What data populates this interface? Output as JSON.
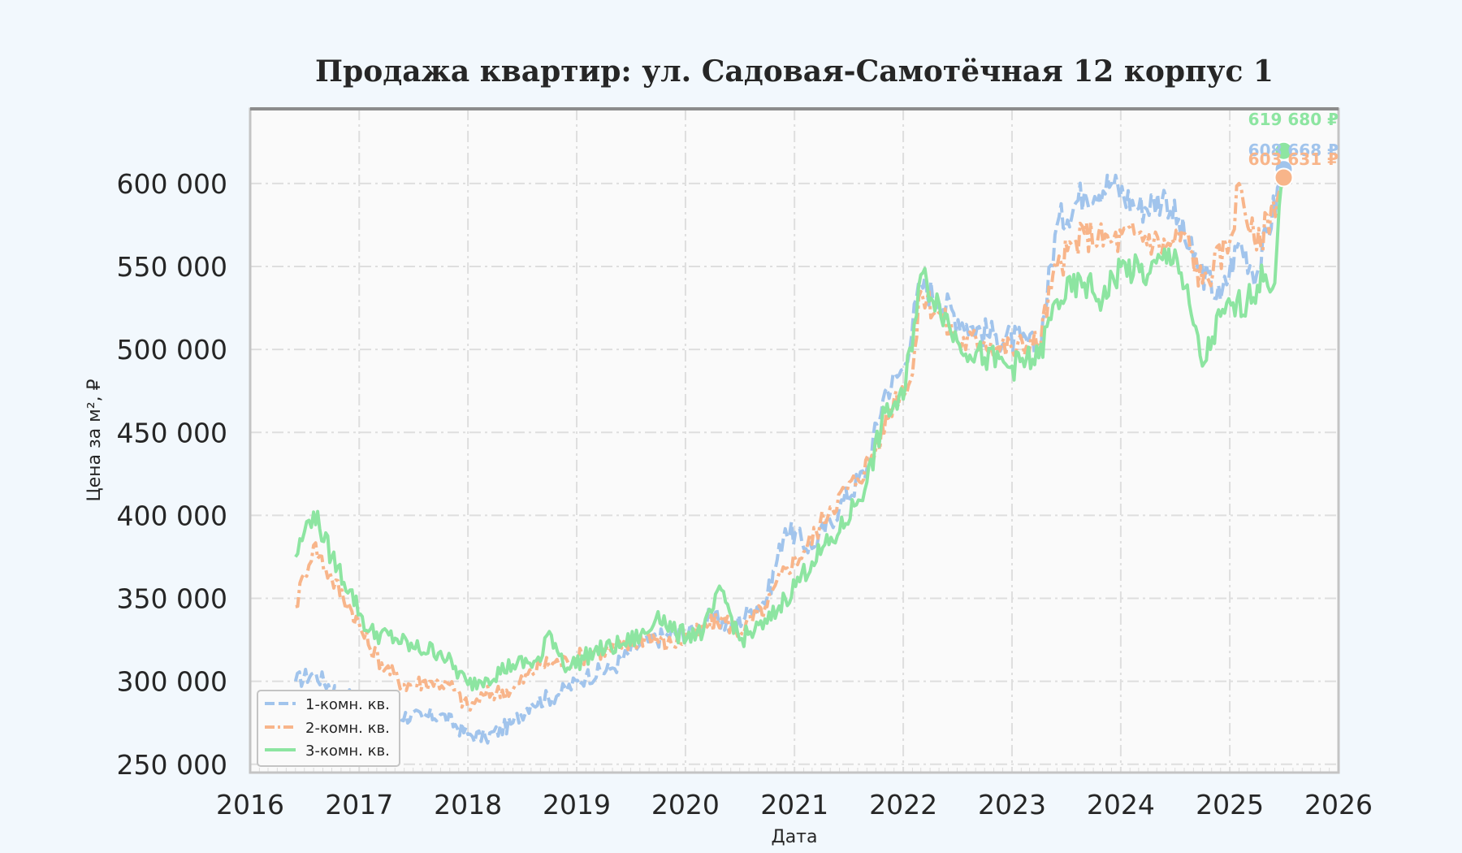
{
  "chart_data": {
    "type": "line",
    "title": "Продажа квартир: ул. Садовая-Самотёчная 12 корпус 1",
    "xlabel": "Дата",
    "ylabel": "Цена за м², ₽",
    "xlim": [
      "2016-01-01",
      "2026-01-01"
    ],
    "ylim": [
      245000,
      645000
    ],
    "x_ticks": [
      "2016",
      "2017",
      "2018",
      "2019",
      "2020",
      "2021",
      "2022",
      "2023",
      "2024",
      "2025",
      "2026"
    ],
    "y_ticks": [
      "250 000",
      "300 000",
      "350 000",
      "400 000",
      "450 000",
      "500 000",
      "550 000",
      "600 000"
    ],
    "y_tick_values": [
      250000,
      300000,
      350000,
      400000,
      450000,
      500000,
      550000,
      600000
    ],
    "grid": true,
    "legend_position": "bottom-left",
    "series": [
      {
        "name": "1-комн. кв.",
        "color": "#a1c4ec",
        "style": "dashed",
        "end_label": "608 668 ₽",
        "points": [
          [
            "2016-06-01",
            300000
          ],
          [
            "2016-08-01",
            305000
          ],
          [
            "2016-11-01",
            292000
          ],
          [
            "2017-02-01",
            290000
          ],
          [
            "2017-05-01",
            280000
          ],
          [
            "2017-08-01",
            278000
          ],
          [
            "2017-10-01",
            280000
          ],
          [
            "2018-01-01",
            268000
          ],
          [
            "2018-03-01",
            266000
          ],
          [
            "2018-06-01",
            275000
          ],
          [
            "2018-08-01",
            287000
          ],
          [
            "2018-11-01",
            292000
          ],
          [
            "2019-02-01",
            303000
          ],
          [
            "2019-05-01",
            308000
          ],
          [
            "2019-08-01",
            322000
          ],
          [
            "2019-11-01",
            328000
          ],
          [
            "2020-02-01",
            330000
          ],
          [
            "2020-04-01",
            340000
          ],
          [
            "2020-06-01",
            332000
          ],
          [
            "2020-08-01",
            342000
          ],
          [
            "2020-10-01",
            350000
          ],
          [
            "2020-12-01",
            392000
          ],
          [
            "2021-03-01",
            380000
          ],
          [
            "2021-06-01",
            405000
          ],
          [
            "2021-09-01",
            428000
          ],
          [
            "2021-11-01",
            475000
          ],
          [
            "2022-01-01",
            488000
          ],
          [
            "2022-03-01",
            540000
          ],
          [
            "2022-05-01",
            530000
          ],
          [
            "2022-08-01",
            515000
          ],
          [
            "2022-11-01",
            508000
          ],
          [
            "2023-02-01",
            505000
          ],
          [
            "2023-04-01",
            500000
          ],
          [
            "2023-06-01",
            575000
          ],
          [
            "2023-09-01",
            595000
          ],
          [
            "2023-12-01",
            600000
          ],
          [
            "2024-03-01",
            585000
          ],
          [
            "2024-06-01",
            592000
          ],
          [
            "2024-09-01",
            555000
          ],
          [
            "2024-12-01",
            530000
          ],
          [
            "2025-02-01",
            565000
          ],
          [
            "2025-04-01",
            545000
          ],
          [
            "2025-07-01",
            608668
          ]
        ]
      },
      {
        "name": "2-комн. кв.",
        "color": "#f8b58a",
        "style": "dashdot",
        "end_label": "603 631 ₽",
        "points": [
          [
            "2016-06-01",
            345000
          ],
          [
            "2016-07-01",
            365000
          ],
          [
            "2016-08-01",
            382000
          ],
          [
            "2016-10-01",
            362000
          ],
          [
            "2016-12-01",
            345000
          ],
          [
            "2017-02-01",
            322000
          ],
          [
            "2017-04-01",
            308000
          ],
          [
            "2017-06-01",
            298000
          ],
          [
            "2017-09-01",
            300000
          ],
          [
            "2017-11-01",
            298000
          ],
          [
            "2018-01-01",
            284000
          ],
          [
            "2018-03-01",
            292000
          ],
          [
            "2018-06-01",
            295000
          ],
          [
            "2018-09-01",
            310000
          ],
          [
            "2018-12-01",
            312000
          ],
          [
            "2019-03-01",
            318000
          ],
          [
            "2019-06-01",
            320000
          ],
          [
            "2019-09-01",
            328000
          ],
          [
            "2019-11-01",
            322000
          ],
          [
            "2020-02-01",
            328000
          ],
          [
            "2020-05-01",
            338000
          ],
          [
            "2020-07-01",
            330000
          ],
          [
            "2020-10-01",
            345000
          ],
          [
            "2020-12-01",
            368000
          ],
          [
            "2021-02-01",
            378000
          ],
          [
            "2021-05-01",
            405000
          ],
          [
            "2021-08-01",
            422000
          ],
          [
            "2021-10-01",
            440000
          ],
          [
            "2021-12-01",
            470000
          ],
          [
            "2022-02-01",
            485000
          ],
          [
            "2022-03-01",
            535000
          ],
          [
            "2022-05-01",
            522000
          ],
          [
            "2022-07-01",
            505000
          ],
          [
            "2022-10-01",
            505000
          ],
          [
            "2023-01-01",
            500000
          ],
          [
            "2023-04-01",
            505000
          ],
          [
            "2023-06-01",
            550000
          ],
          [
            "2023-09-01",
            570000
          ],
          [
            "2023-12-01",
            565000
          ],
          [
            "2024-03-01",
            570000
          ],
          [
            "2024-06-01",
            562000
          ],
          [
            "2024-08-01",
            570000
          ],
          [
            "2024-10-01",
            540000
          ],
          [
            "2025-01-01",
            565000
          ],
          [
            "2025-02-01",
            600000
          ],
          [
            "2025-04-01",
            560000
          ],
          [
            "2025-07-01",
            603631
          ]
        ]
      },
      {
        "name": "3-комн. кв.",
        "color": "#8de5a1",
        "style": "solid",
        "end_label": "619 680 ₽",
        "points": [
          [
            "2016-06-01",
            375000
          ],
          [
            "2016-07-01",
            390000
          ],
          [
            "2016-08-01",
            402000
          ],
          [
            "2016-10-01",
            375000
          ],
          [
            "2016-12-01",
            355000
          ],
          [
            "2017-02-01",
            330000
          ],
          [
            "2017-05-01",
            326000
          ],
          [
            "2017-07-01",
            320000
          ],
          [
            "2017-10-01",
            318000
          ],
          [
            "2018-01-01",
            298000
          ],
          [
            "2018-03-01",
            302000
          ],
          [
            "2018-06-01",
            310000
          ],
          [
            "2018-09-01",
            312000
          ],
          [
            "2018-10-01",
            330000
          ],
          [
            "2018-12-01",
            308000
          ],
          [
            "2019-03-01",
            318000
          ],
          [
            "2019-06-01",
            322000
          ],
          [
            "2019-09-01",
            330000
          ],
          [
            "2019-10-01",
            342000
          ],
          [
            "2019-12-01",
            328000
          ],
          [
            "2020-03-01",
            330000
          ],
          [
            "2020-05-01",
            355000
          ],
          [
            "2020-07-01",
            325000
          ],
          [
            "2020-10-01",
            335000
          ],
          [
            "2020-12-01",
            350000
          ],
          [
            "2021-03-01",
            372000
          ],
          [
            "2021-06-01",
            390000
          ],
          [
            "2021-09-01",
            420000
          ],
          [
            "2021-11-01",
            462000
          ],
          [
            "2022-01-01",
            470000
          ],
          [
            "2022-03-01",
            545000
          ],
          [
            "2022-05-01",
            528000
          ],
          [
            "2022-07-01",
            505000
          ],
          [
            "2022-10-01",
            495000
          ],
          [
            "2023-01-01",
            490000
          ],
          [
            "2023-04-01",
            495000
          ],
          [
            "2023-06-01",
            530000
          ],
          [
            "2023-09-01",
            540000
          ],
          [
            "2023-11-01",
            530000
          ],
          [
            "2024-01-01",
            550000
          ],
          [
            "2024-04-01",
            545000
          ],
          [
            "2024-07-01",
            560000
          ],
          [
            "2024-09-01",
            515000
          ],
          [
            "2024-10-01",
            490000
          ],
          [
            "2024-12-01",
            520000
          ],
          [
            "2025-03-01",
            530000
          ],
          [
            "2025-05-01",
            545000
          ],
          [
            "2025-06-01",
            540000
          ],
          [
            "2025-07-01",
            619680
          ]
        ]
      }
    ]
  }
}
